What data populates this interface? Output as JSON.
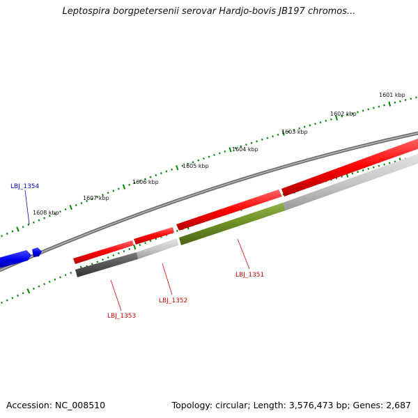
{
  "title": "Leptospira borgpetersenii serovar Hardjo-bovis JB197 chromos...",
  "footer": {
    "accession": "Accession: NC_008510",
    "summary": "Topology: circular; Length: 3,576,473 bp; Genes: 2,687"
  },
  "scale_labels": [
    "1601 kbp",
    "1602 kbp",
    "1603 kbp",
    "1604 kbp",
    "1605 kbp",
    "1606 kbp",
    "1607 kbp",
    "1608 kbp"
  ],
  "genes": {
    "LBJ_1354": "LBJ_1354",
    "LBJ_1353": "LBJ_1353",
    "LBJ_1352": "LBJ_1352",
    "LBJ_1351": "LBJ_1351"
  },
  "colors": {
    "forward_genes": "#ff0000",
    "reverse_gene_blue": "#0000ee",
    "backbone": "#808080",
    "ticks": "#008000",
    "cds_highlight": "#6b8e23",
    "cds_light": "#c8c8c8",
    "cds_dark": "#555555",
    "blue_label": "#0000cc",
    "red_label": "#cc0000"
  }
}
